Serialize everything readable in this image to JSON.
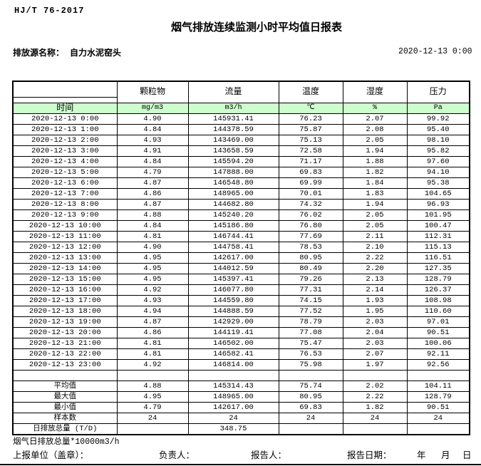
{
  "doc_code": "HJ/T  76-2017",
  "title": "烟气排放连续监测小时平均值日报表",
  "source": {
    "label": "排放源名称：",
    "name": "自力水泥窑头"
  },
  "report_datetime": "2020-12-13 0:00",
  "colors": {
    "units_row_green": "#ccffcc",
    "border": "#000000"
  },
  "table": {
    "time_header": "时间",
    "columns": [
      "颗粒物",
      "流量",
      "温度",
      "湿度",
      "压力"
    ],
    "units": [
      "mg/m3",
      "m3/h",
      "℃",
      "%",
      "Pa"
    ],
    "rows": [
      [
        "2020-12-13 0:00",
        "4.90",
        "145931.41",
        "76.23",
        "2.07",
        "99.92"
      ],
      [
        "2020-12-13 1:00",
        "4.84",
        "144378.59",
        "75.87",
        "2.08",
        "95.40"
      ],
      [
        "2020-12-13 2:00",
        "4.93",
        "143469.00",
        "75.13",
        "2.05",
        "98.10"
      ],
      [
        "2020-12-13 3:00",
        "4.91",
        "143658.59",
        "72.58",
        "1.94",
        "95.82"
      ],
      [
        "2020-12-13 4:00",
        "4.84",
        "145594.20",
        "71.17",
        "1.88",
        "97.60"
      ],
      [
        "2020-12-13 5:00",
        "4.79",
        "147888.00",
        "69.83",
        "1.82",
        "94.10"
      ],
      [
        "2020-12-13 6:00",
        "4.87",
        "146548.80",
        "69.99",
        "1.84",
        "95.38"
      ],
      [
        "2020-12-13 7:00",
        "4.86",
        "148965.00",
        "70.01",
        "1.83",
        "104.65"
      ],
      [
        "2020-12-13 8:00",
        "4.87",
        "144682.80",
        "74.32",
        "1.94",
        "96.93"
      ],
      [
        "2020-12-13 9:00",
        "4.88",
        "145240.20",
        "76.02",
        "2.05",
        "101.95"
      ],
      [
        "2020-12-13 10:00",
        "4.84",
        "145186.80",
        "76.80",
        "2.05",
        "100.47"
      ],
      [
        "2020-12-13 11:00",
        "4.81",
        "146744.41",
        "77.69",
        "2.11",
        "112.31"
      ],
      [
        "2020-12-13 12:00",
        "4.90",
        "144758.41",
        "78.53",
        "2.10",
        "115.13"
      ],
      [
        "2020-12-13 13:00",
        "4.95",
        "142617.00",
        "80.95",
        "2.22",
        "116.51"
      ],
      [
        "2020-12-13 14:00",
        "4.95",
        "144012.59",
        "80.49",
        "2.20",
        "127.35"
      ],
      [
        "2020-12-13 15:00",
        "4.95",
        "145397.41",
        "79.26",
        "2.13",
        "128.79"
      ],
      [
        "2020-12-13 16:00",
        "4.92",
        "146077.80",
        "77.31",
        "2.14",
        "126.37"
      ],
      [
        "2020-12-13 17:00",
        "4.93",
        "144559.80",
        "74.15",
        "1.93",
        "108.98"
      ],
      [
        "2020-12-13 18:00",
        "4.94",
        "144888.59",
        "77.52",
        "1.95",
        "110.60"
      ],
      [
        "2020-12-13 19:00",
        "4.87",
        "142929.00",
        "78.79",
        "2.03",
        "97.01"
      ],
      [
        "2020-12-13 20:00",
        "4.86",
        "144119.41",
        "77.08",
        "2.04",
        "90.51"
      ],
      [
        "2020-12-13 21:00",
        "4.81",
        "146502.00",
        "75.47",
        "2.03",
        "100.06"
      ],
      [
        "2020-12-13 22:00",
        "4.81",
        "146582.41",
        "76.53",
        "2.07",
        "92.11"
      ],
      [
        "2020-12-13 23:00",
        "4.92",
        "146814.00",
        "75.98",
        "1.97",
        "92.56"
      ]
    ],
    "summary": [
      [
        "平均值",
        "4.88",
        "145314.43",
        "75.74",
        "2.02",
        "104.11"
      ],
      [
        "最大值",
        "4.95",
        "148965.00",
        "80.95",
        "2.22",
        "128.79"
      ],
      [
        "最小值",
        "4.79",
        "142617.00",
        "69.83",
        "1.82",
        "90.51"
      ],
      [
        "样本数",
        "24",
        "24",
        "24",
        "24",
        "24"
      ],
      [
        "日排放总量 (T/D)",
        "",
        "348.75",
        "",
        "",
        ""
      ]
    ]
  },
  "footer": {
    "note": "烟气日排放总量*10000m3/h",
    "unit_label": "上报单位（盖章）：",
    "responsible_label": "负责人：",
    "reporter_label": "报告人：",
    "report_date_label": "报告日期：",
    "year_label": "年",
    "month_label": "月",
    "day_label": "日"
  }
}
